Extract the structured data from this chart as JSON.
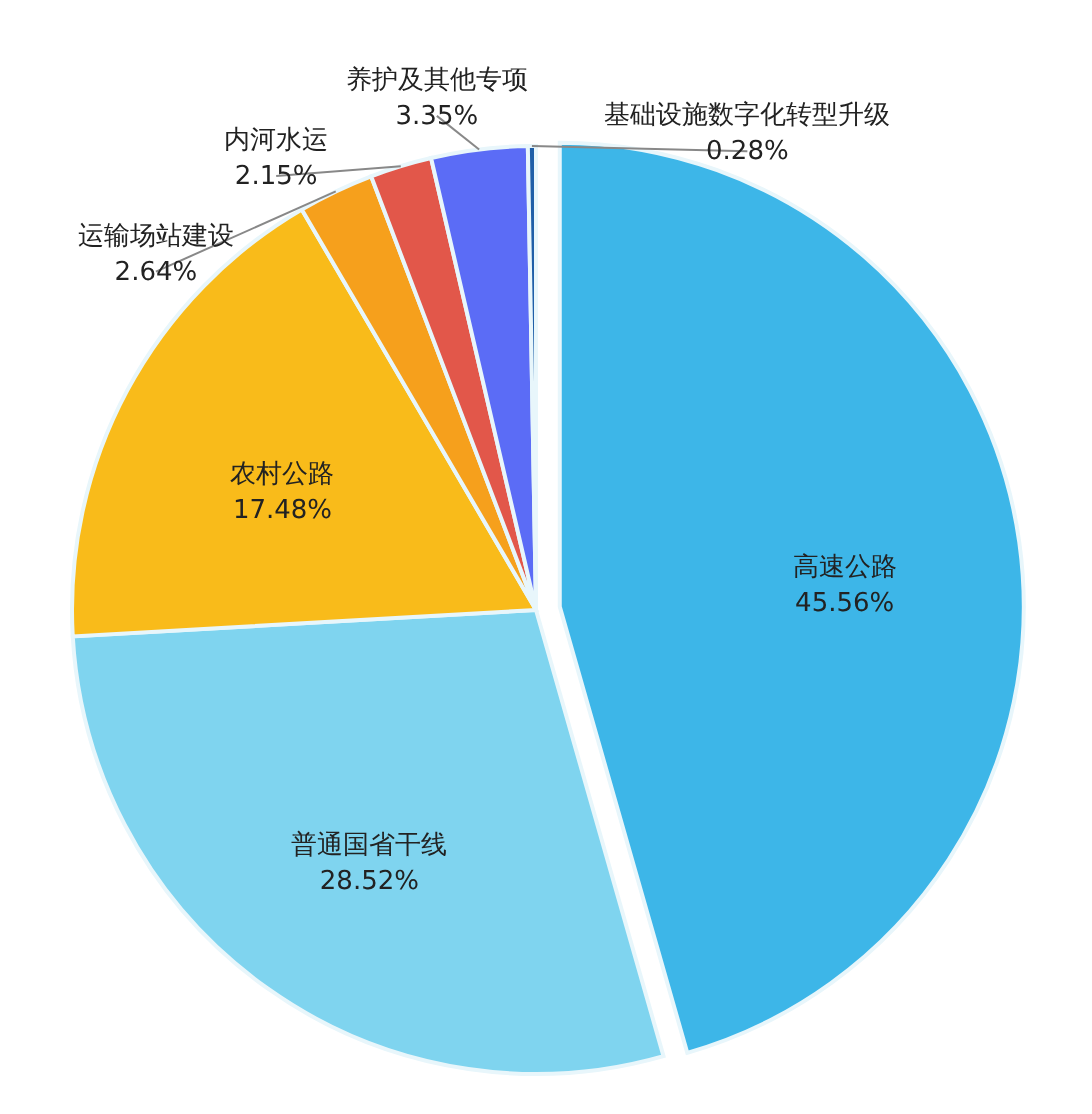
{
  "chart_data": {
    "type": "pie",
    "categories": [
      "高速公路",
      "普通国省干线",
      "农村公路",
      "运输场站建设",
      "内河水运",
      "养护及其他专项",
      "基础设施数字化转型升级"
    ],
    "values": [
      45.56,
      28.52,
      17.48,
      2.64,
      2.15,
      3.35,
      0.28
    ],
    "value_labels": [
      "45.56%",
      "28.52%",
      "17.48%",
      "2.64%",
      "2.15%",
      "3.35%",
      "0.28%"
    ],
    "colors": [
      "#3db6e8",
      "#7fd4ef",
      "#f9bb1a",
      "#f6a01c",
      "#e2574a",
      "#5b6cf6",
      "#1f5fa8"
    ]
  }
}
